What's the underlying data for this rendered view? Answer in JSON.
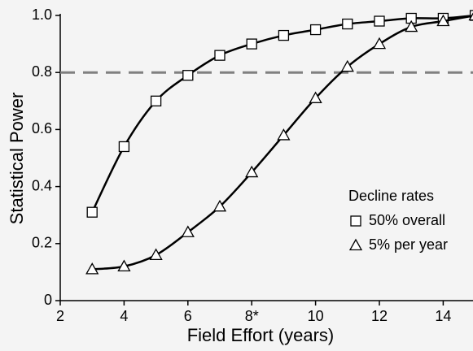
{
  "chart_data": {
    "type": "line",
    "xlabel": "Field Effort (years)",
    "ylabel": "Statistical Power",
    "x": [
      3,
      4,
      5,
      6,
      7,
      8,
      9,
      10,
      11,
      12,
      13,
      14,
      15
    ],
    "series": [
      {
        "name": "50% overall",
        "marker": "square",
        "color": "#000000",
        "values": [
          0.31,
          0.54,
          0.7,
          0.79,
          0.86,
          0.9,
          0.93,
          0.95,
          0.97,
          0.98,
          0.99,
          0.99,
          1.0
        ]
      },
      {
        "name": "5% per year",
        "marker": "triangle",
        "color": "#000000",
        "values": [
          0.11,
          0.12,
          0.16,
          0.24,
          0.33,
          0.45,
          0.58,
          0.71,
          0.82,
          0.9,
          0.96,
          0.98,
          1.0
        ]
      }
    ],
    "legend_title": "Decline rates",
    "legend_position": "right",
    "reference_line": {
      "y": 0.8,
      "color": "#808080"
    },
    "xlim": [
      2,
      15
    ],
    "ylim": [
      0,
      1
    ],
    "xticks": [
      2,
      4,
      6,
      {
        "value": 8,
        "label": "8*"
      },
      10,
      12,
      14
    ],
    "yticks": [
      0,
      0.2,
      0.4,
      0.6,
      0.8,
      {
        "value": 1,
        "label": "1.0"
      }
    ]
  }
}
